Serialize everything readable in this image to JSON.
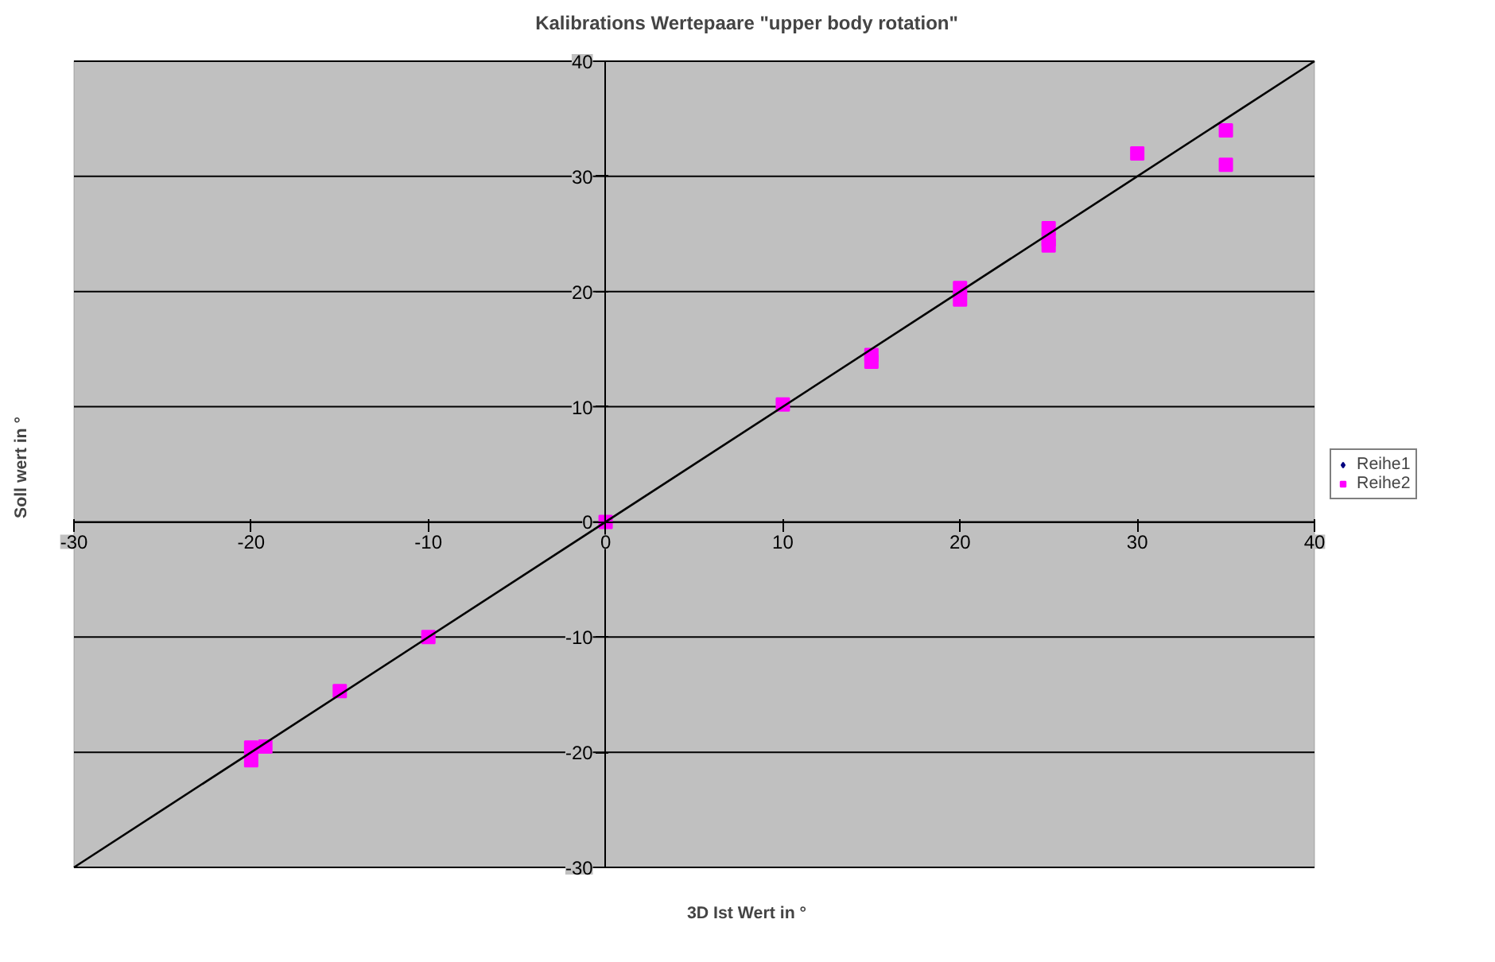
{
  "chart_data": {
    "type": "scatter",
    "title": "Kalibrations Wertepaare \"upper body rotation\"",
    "xlabel": "3D Ist Wert in °",
    "ylabel": "Soll wert in °",
    "xlim": [
      -30,
      40
    ],
    "ylim": [
      -30,
      40
    ],
    "xticks": [
      -30,
      -20,
      -10,
      0,
      10,
      20,
      30,
      40
    ],
    "yticks": [
      -30,
      -20,
      -10,
      0,
      10,
      20,
      30,
      40
    ],
    "grid": "y",
    "legend": "right",
    "series": [
      {
        "name": "Reihe1",
        "color": "#000080",
        "marker": "diamond",
        "x": [
          null
        ],
        "values": [
          null
        ]
      },
      {
        "name": "Reihe2",
        "color": "#ff00ff",
        "marker": "square",
        "x": [
          35,
          35,
          30,
          25,
          25,
          25,
          20,
          20,
          15,
          15,
          10,
          0,
          -10,
          -15,
          -20,
          -20,
          -19.2
        ],
        "values": [
          34,
          31,
          32,
          25.5,
          24.5,
          24,
          20.3,
          19.3,
          14.5,
          13.9,
          10.2,
          0,
          -10,
          -14.7,
          -19.6,
          -20.7,
          -19.5
        ]
      },
      {
        "type": "line",
        "color": "#000000",
        "marker": "none",
        "x": [
          -30,
          40
        ],
        "values": [
          -30,
          40
        ]
      }
    ]
  }
}
